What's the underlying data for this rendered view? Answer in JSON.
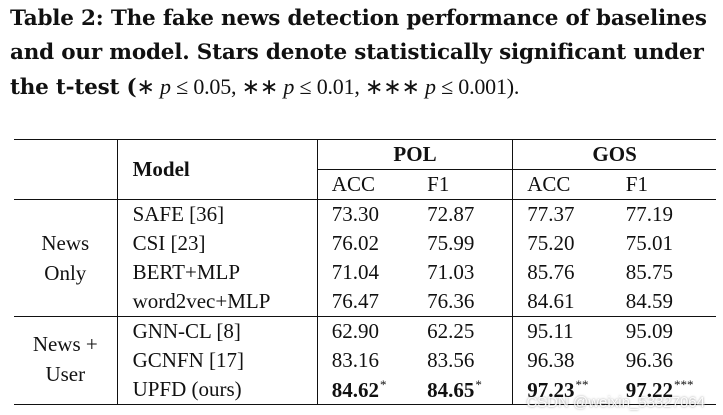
{
  "caption": {
    "line1": "Table 2: The fake news detection performance of baselines",
    "line2": "and our model. Stars denote statistically significant under",
    "line3_prefix": "the t-test (",
    "math": {
      "s1": "∗ ",
      "p1": "p",
      "c1": " ≤ 0.05, ∗∗  ",
      "p2": "p",
      "c2": " ≤ 0.01, ∗∗∗ ",
      "p3": "p",
      "c3": " ≤ 0.001)."
    }
  },
  "table": {
    "header": {
      "model": "Model",
      "pol": "POL",
      "gos": "GOS",
      "acc": "ACC",
      "f1": "F1"
    },
    "groups": [
      {
        "label_line1": "News",
        "label_line2": "Only",
        "rows": [
          {
            "model": "SAFE [36]",
            "pol_acc": "73.30",
            "pol_f1": "72.87",
            "gos_acc": "77.37",
            "gos_f1": "77.19"
          },
          {
            "model": "CSI [23]",
            "pol_acc": "76.02",
            "pol_f1": "75.99",
            "gos_acc": "75.20",
            "gos_f1": "75.01"
          },
          {
            "model": "BERT+MLP",
            "pol_acc": "71.04",
            "pol_f1": "71.03",
            "gos_acc": "85.76",
            "gos_f1": "85.75"
          },
          {
            "model": "word2vec+MLP",
            "pol_acc": "76.47",
            "pol_f1": "76.36",
            "gos_acc": "84.61",
            "gos_f1": "84.59"
          }
        ]
      },
      {
        "label_line1": "News +",
        "label_line2": "User",
        "rows": [
          {
            "model": "GNN-CL [8]",
            "pol_acc": "62.90",
            "pol_f1": "62.25",
            "gos_acc": "95.11",
            "gos_f1": "95.09"
          },
          {
            "model": "GCNFN [17]",
            "pol_acc": "83.16",
            "pol_f1": "83.56",
            "gos_acc": "96.38",
            "gos_f1": "96.36"
          }
        ]
      }
    ],
    "ours": {
      "model": "UPFD (ours)",
      "pol_acc": "84.62",
      "pol_acc_star": "*",
      "pol_f1": "84.65",
      "pol_f1_star": "*",
      "gos_acc": "97.23",
      "gos_acc_star": "**",
      "gos_f1": "97.22",
      "gos_f1_star": "***"
    }
  },
  "watermark": "CSDN @weixin_53327064"
}
